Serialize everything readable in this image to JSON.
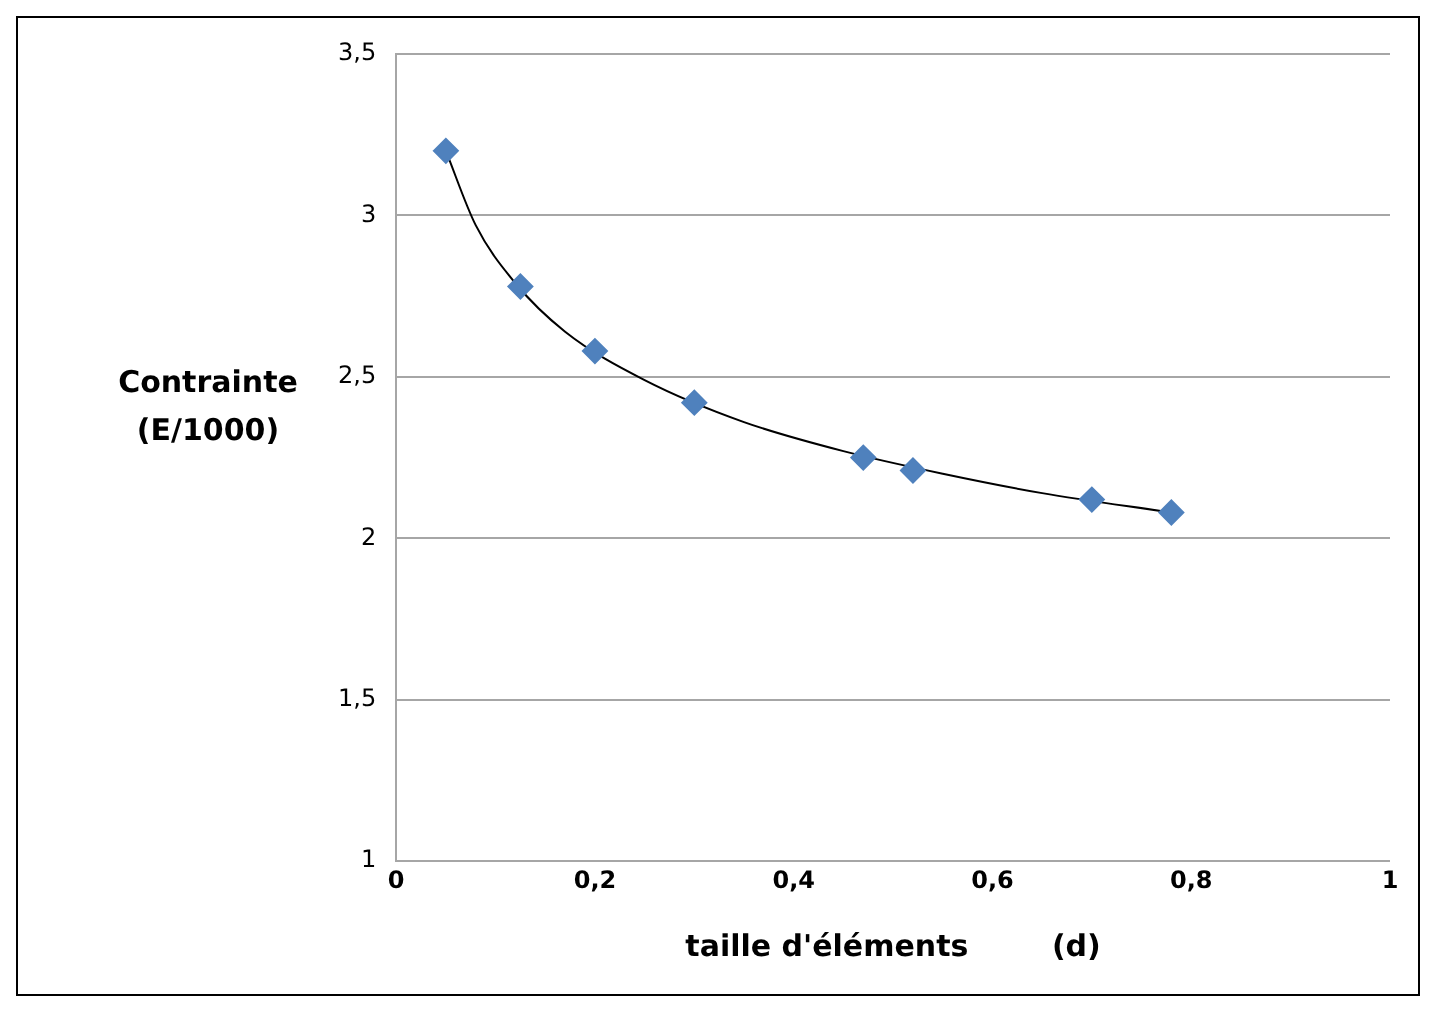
{
  "chart_data": {
    "type": "scatter",
    "xlabel": "taille d'éléments        (d)",
    "ylabel": "Contrainte (E/1000)",
    "series": [
      {
        "color": "#4f81bd",
        "marker": "diamond",
        "x": [
          0.05,
          0.125,
          0.2,
          0.3,
          0.47,
          0.52,
          0.7,
          0.78
        ],
        "values": [
          3.2,
          2.78,
          2.58,
          2.42,
          2.25,
          2.21,
          2.12,
          2.08
        ]
      },
      {
        "type": "line",
        "color": "#000000",
        "marker": "none",
        "line_style": "solid",
        "x": [
          0.05,
          0.08,
          0.12,
          0.17,
          0.25,
          0.35,
          0.45,
          0.55,
          0.65,
          0.78
        ],
        "values": [
          3.2,
          2.97,
          2.79,
          2.64,
          2.49,
          2.36,
          2.27,
          2.2,
          2.14,
          2.08
        ]
      }
    ],
    "xlim": [
      0,
      1
    ],
    "xticks": [
      0,
      {
        "value": 0.2,
        "label": "0,2"
      },
      {
        "value": 0.4,
        "label": "0,4"
      },
      {
        "value": 0.6,
        "label": "0,6"
      },
      {
        "value": 0.8,
        "label": "0,8"
      },
      1
    ],
    "ylim": [
      1,
      3.5
    ],
    "yticks": [
      1,
      {
        "value": 1.5,
        "label": "1,5"
      },
      2,
      {
        "value": 2.5,
        "label": "2,5"
      },
      3,
      {
        "value": 3.5,
        "label": "3,5"
      }
    ],
    "grid": "y",
    "legend": false
  }
}
